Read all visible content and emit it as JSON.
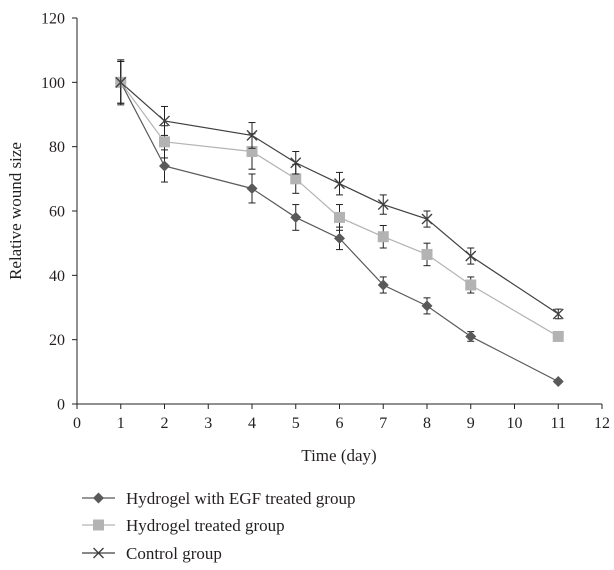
{
  "chart_data": {
    "type": "line",
    "title": "",
    "xlabel": "Time (day)",
    "ylabel": "Relative wound size",
    "xlim": [
      0,
      12
    ],
    "ylim": [
      0,
      120
    ],
    "xticks": [
      0,
      1,
      2,
      3,
      4,
      5,
      6,
      7,
      8,
      9,
      10,
      11,
      12
    ],
    "yticks": [
      0,
      20,
      40,
      60,
      80,
      100,
      120
    ],
    "grid": false,
    "legend_position": "bottom-left",
    "series": [
      {
        "name": "Hydrogel with EGF treated group",
        "marker": "diamond",
        "color": "#595959",
        "x": [
          1,
          2,
          4,
          5,
          6,
          7,
          8,
          9,
          11
        ],
        "y": [
          100,
          74,
          67,
          58,
          51.5,
          37,
          30.5,
          21,
          7
        ],
        "err": [
          6.5,
          5,
          4.5,
          4,
          3.5,
          2.5,
          2.5,
          1.5,
          0.5
        ]
      },
      {
        "name": "Hydrogel treated group",
        "marker": "square",
        "color": "#b3b3b3",
        "x": [
          1,
          2,
          4,
          5,
          6,
          7,
          8,
          9,
          11
        ],
        "y": [
          100,
          81.5,
          78.5,
          70,
          58,
          52,
          46.5,
          37,
          21
        ],
        "err": [
          6.5,
          5,
          5.5,
          4.5,
          4,
          3.5,
          3.5,
          2.5,
          1
        ]
      },
      {
        "name": "Control group",
        "marker": "x",
        "color": "#404040",
        "x": [
          1,
          2,
          4,
          5,
          6,
          7,
          8,
          9,
          11
        ],
        "y": [
          100,
          88,
          83.5,
          75,
          68.5,
          62,
          57.5,
          46,
          28
        ],
        "err": [
          7,
          4.5,
          4,
          3.5,
          3.5,
          3,
          2.5,
          2.5,
          1.5
        ]
      }
    ]
  }
}
